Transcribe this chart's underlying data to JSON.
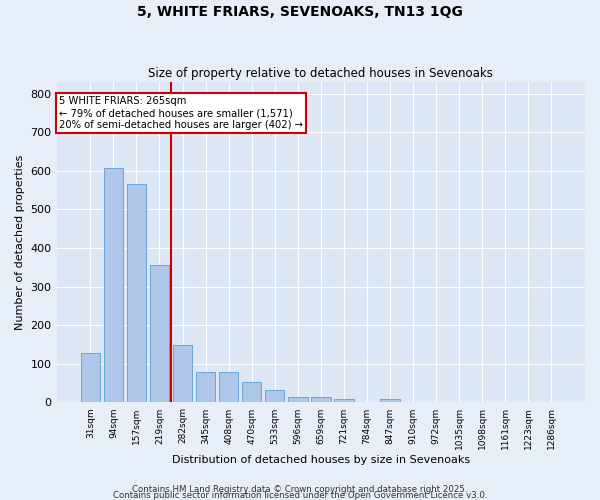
{
  "title1": "5, WHITE FRIARS, SEVENOAKS, TN13 1QG",
  "title2": "Size of property relative to detached houses in Sevenoaks",
  "xlabel": "Distribution of detached houses by size in Sevenoaks",
  "ylabel": "Number of detached properties",
  "categories": [
    "31sqm",
    "94sqm",
    "157sqm",
    "219sqm",
    "282sqm",
    "345sqm",
    "408sqm",
    "470sqm",
    "533sqm",
    "596sqm",
    "659sqm",
    "721sqm",
    "784sqm",
    "847sqm",
    "910sqm",
    "972sqm",
    "1035sqm",
    "1098sqm",
    "1161sqm",
    "1223sqm",
    "1286sqm"
  ],
  "values": [
    128,
    607,
    565,
    355,
    150,
    79,
    79,
    52,
    31,
    13,
    13,
    8,
    0,
    8,
    0,
    0,
    0,
    0,
    0,
    0,
    0
  ],
  "bar_color": "#aec6e8",
  "bar_edge_color": "#5a9fd4",
  "vline_x_index": 4,
  "vline_color": "#cc0000",
  "annotation_text": "5 WHITE FRIARS: 265sqm\n← 79% of detached houses are smaller (1,571)\n20% of semi-detached houses are larger (402) →",
  "annotation_box_color": "#cc0000",
  "annotation_text_color": "#000000",
  "background_color": "#e8eef8",
  "plot_bg_color": "#dde6f5",
  "grid_color": "#ffffff",
  "ylim": [
    0,
    830
  ],
  "yticks": [
    0,
    100,
    200,
    300,
    400,
    500,
    600,
    700,
    800
  ],
  "footer1": "Contains HM Land Registry data © Crown copyright and database right 2025.",
  "footer2": "Contains public sector information licensed under the Open Government Licence v3.0."
}
